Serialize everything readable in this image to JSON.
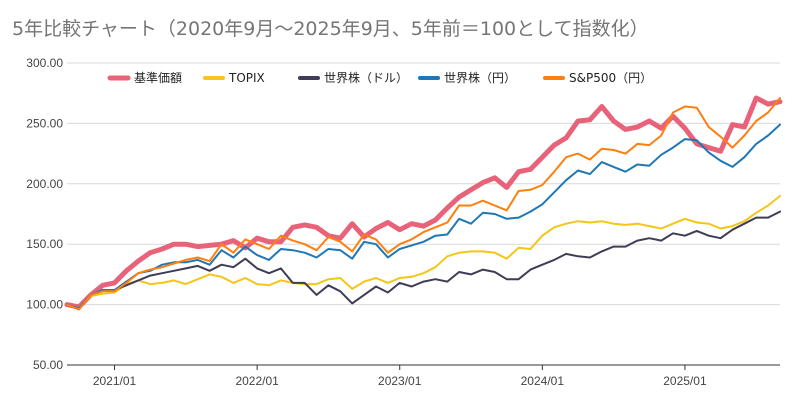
{
  "chart_data": {
    "type": "line",
    "title": "5年比較チャート（2020年9月～2025年9月、5年前＝100として指数化）",
    "xlabel": "",
    "ylabel": "",
    "ylim": [
      50,
      300
    ],
    "y_ticks": [
      "50.00",
      "100.00",
      "150.00",
      "200.00",
      "250.00",
      "300.00"
    ],
    "x_ticks": [
      "2021/01",
      "2022/01",
      "2023/01",
      "2024/01",
      "2025/01"
    ],
    "grid": "horizontal",
    "legend_position": "top",
    "x": [
      "2020/09",
      "2020/10",
      "2020/11",
      "2020/12",
      "2021/01",
      "2021/02",
      "2021/03",
      "2021/04",
      "2021/05",
      "2021/06",
      "2021/07",
      "2021/08",
      "2021/09",
      "2021/10",
      "2021/11",
      "2021/12",
      "2022/01",
      "2022/02",
      "2022/03",
      "2022/04",
      "2022/05",
      "2022/06",
      "2022/07",
      "2022/08",
      "2022/09",
      "2022/10",
      "2022/11",
      "2022/12",
      "2023/01",
      "2023/02",
      "2023/03",
      "2023/04",
      "2023/05",
      "2023/06",
      "2023/07",
      "2023/08",
      "2023/09",
      "2023/10",
      "2023/11",
      "2023/12",
      "2024/01",
      "2024/02",
      "2024/03",
      "2024/04",
      "2024/05",
      "2024/06",
      "2024/07",
      "2024/08",
      "2024/09",
      "2024/10",
      "2024/11",
      "2024/12",
      "2025/01",
      "2025/02",
      "2025/03",
      "2025/04",
      "2025/05",
      "2025/06",
      "2025/07",
      "2025/08",
      "2025/09"
    ],
    "series": [
      {
        "name": "基準価額",
        "color": "#e8637a",
        "width": 5,
        "values": [
          100,
          98,
          108,
          116,
          118,
          128,
          136,
          143,
          146,
          150,
          150,
          148,
          149,
          150,
          153,
          147,
          155,
          152,
          152,
          164,
          166,
          164,
          157,
          155,
          167,
          156,
          163,
          168,
          162,
          167,
          165,
          170,
          180,
          189,
          195,
          201,
          205,
          197,
          210,
          212,
          222,
          232,
          238,
          252,
          253,
          264,
          252,
          245,
          247,
          252,
          246,
          256,
          246,
          233,
          230,
          227,
          249,
          247,
          271,
          266,
          268
        ]
      },
      {
        "name": "TOPIX",
        "color": "#f5c518",
        "width": 2,
        "values": [
          100,
          97,
          107,
          109,
          110,
          117,
          120,
          117,
          118,
          120,
          117,
          121,
          125,
          123,
          118,
          122,
          117,
          116,
          120,
          118,
          117,
          117,
          121,
          122,
          113,
          119,
          122,
          118,
          122,
          123,
          126,
          131,
          140,
          143,
          144,
          144,
          143,
          138,
          147,
          146,
          157,
          164,
          167,
          169,
          168,
          169,
          167,
          166,
          167,
          165,
          163,
          167,
          171,
          168,
          167,
          163,
          165,
          169,
          176,
          182,
          190
        ]
      },
      {
        "name": "世界株（ドル）",
        "color": "#3f3d56",
        "width": 2,
        "values": [
          100,
          96,
          108,
          112,
          112,
          116,
          120,
          124,
          126,
          128,
          130,
          132,
          128,
          133,
          131,
          138,
          130,
          126,
          130,
          118,
          118,
          108,
          116,
          111,
          101,
          108,
          115,
          110,
          118,
          115,
          119,
          121,
          119,
          127,
          125,
          129,
          127,
          121,
          121,
          129,
          133,
          137,
          142,
          140,
          139,
          144,
          148,
          148,
          153,
          155,
          153,
          159,
          157,
          161,
          157,
          155,
          162,
          167,
          172,
          172,
          177
        ]
      },
      {
        "name": "世界株（円）",
        "color": "#1f77b4",
        "width": 2,
        "values": [
          100,
          97,
          108,
          112,
          112,
          119,
          126,
          128,
          133,
          135,
          135,
          137,
          133,
          145,
          139,
          148,
          141,
          137,
          146,
          145,
          143,
          139,
          146,
          145,
          138,
          152,
          150,
          139,
          146,
          149,
          152,
          157,
          158,
          171,
          167,
          176,
          175,
          171,
          172,
          177,
          183,
          193,
          203,
          211,
          208,
          218,
          214,
          210,
          216,
          215,
          224,
          230,
          237,
          236,
          226,
          219,
          214,
          222,
          233,
          240,
          249
        ]
      },
      {
        "name": "S&P500（円）",
        "color": "#ff7f0e",
        "width": 2,
        "values": [
          100,
          96,
          108,
          111,
          111,
          118,
          126,
          129,
          131,
          134,
          137,
          139,
          136,
          150,
          143,
          154,
          150,
          146,
          157,
          153,
          150,
          145,
          156,
          152,
          144,
          158,
          154,
          143,
          150,
          154,
          160,
          164,
          168,
          182,
          182,
          186,
          182,
          178,
          194,
          195,
          199,
          210,
          222,
          225,
          220,
          229,
          228,
          225,
          233,
          232,
          240,
          259,
          264,
          263,
          247,
          239,
          230,
          240,
          252,
          259,
          271
        ]
      }
    ]
  }
}
